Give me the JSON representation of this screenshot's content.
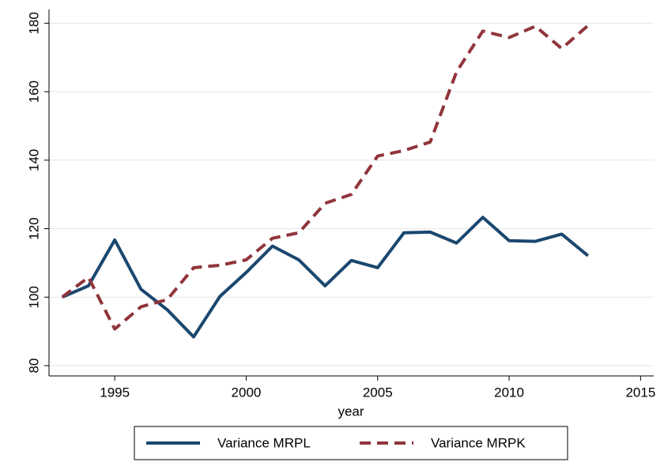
{
  "chart_data": {
    "type": "line",
    "x_label": "year",
    "x": [
      1993,
      1994,
      1995,
      1996,
      1997,
      1998,
      1999,
      2000,
      2001,
      2002,
      2003,
      2004,
      2005,
      2006,
      2007,
      2008,
      2009,
      2010,
      2011,
      2012,
      2013
    ],
    "series": [
      {
        "name": "Variance MRPL",
        "color": "#1a476f",
        "dash": "solid",
        "values": [
          100,
          103.3,
          116.7,
          102.3,
          96.3,
          88.4,
          100.2,
          107.2,
          114.9,
          110.9,
          103.3,
          110.7,
          108.6,
          118.8,
          119,
          115.8,
          123.3,
          116.5,
          116.3,
          118.4,
          112.1
        ]
      },
      {
        "name": "Variance MRPK",
        "color": "#90353b",
        "dash": "dashed",
        "values": [
          100,
          105.8,
          90.7,
          97.2,
          99.3,
          108.6,
          109.3,
          110.9,
          117.2,
          118.8,
          127.4,
          130,
          141.2,
          142.8,
          145.3,
          165.8,
          177.7,
          175.8,
          179.1,
          172.6,
          179.3
        ]
      }
    ],
    "xlim": [
      1992.5,
      2015.5
    ],
    "xticks": [
      1995,
      2000,
      2005,
      2010,
      2015
    ],
    "ylim": [
      77,
      184
    ],
    "yticks": [
      80,
      100,
      120,
      140,
      160,
      180
    ],
    "grid": true,
    "legend": "bottom"
  }
}
